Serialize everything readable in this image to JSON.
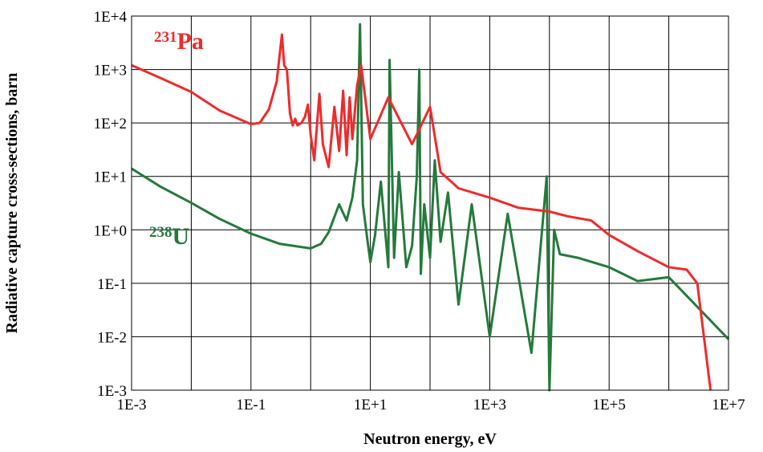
{
  "chart_data": {
    "type": "line",
    "title": "",
    "xlabel": "Neutron energy, eV",
    "ylabel": "Radiative capture cross-sections, barn",
    "x_scale": "log",
    "y_scale": "log",
    "xlim": [
      0.001,
      10000000
    ],
    "ylim": [
      0.001,
      10000
    ],
    "x_ticks": [
      "1E-3",
      "1E-1",
      "1E+1",
      "1E+3",
      "1E+5",
      "1E+7"
    ],
    "x_tick_values": [
      0.001,
      0.1,
      10,
      1000,
      100000,
      10000000
    ],
    "y_ticks": [
      "1E+4",
      "1E+3",
      "1E+2",
      "1E+1",
      "1E+0",
      "1E-1",
      "1E-2",
      "1E-3"
    ],
    "y_tick_values": [
      10000,
      1000,
      100,
      10,
      1,
      0.1,
      0.01,
      0.001
    ],
    "x_minor_gridlines": [
      0.01,
      1,
      100,
      10000,
      1000000
    ],
    "grid": true,
    "series": [
      {
        "name": "Pa",
        "mass_number": "231",
        "color": "#ee2b2b",
        "x": [
          0.001,
          0.003,
          0.01,
          0.03,
          0.1,
          0.14,
          0.2,
          0.27,
          0.33,
          0.36,
          0.4,
          0.45,
          0.5,
          0.55,
          0.6,
          0.7,
          0.8,
          0.9,
          1.0,
          1.15,
          1.4,
          1.6,
          2.0,
          2.5,
          3.0,
          3.5,
          4.0,
          4.5,
          5.0,
          6.0,
          7.0,
          10,
          20,
          50,
          100,
          150,
          300,
          1000,
          3000,
          10000,
          20000,
          50000,
          100000,
          300000,
          1000000,
          2000000,
          3000000,
          5000000
        ],
        "y": [
          1200,
          700,
          380,
          170,
          95,
          100,
          180,
          600,
          4500,
          1200,
          1000,
          150,
          90,
          120,
          90,
          100,
          130,
          220,
          60,
          20,
          350,
          40,
          15,
          200,
          30,
          400,
          25,
          300,
          50,
          500,
          1200,
          50,
          300,
          40,
          200,
          12,
          6,
          4,
          2.6,
          2.2,
          1.8,
          1.5,
          0.8,
          0.4,
          0.2,
          0.18,
          0.1,
          0.001
        ]
      },
      {
        "name": "U",
        "mass_number": "238",
        "color": "#247a3b",
        "x": [
          0.001,
          0.003,
          0.01,
          0.03,
          0.1,
          0.3,
          1,
          1.5,
          2,
          3,
          4,
          5,
          6,
          6.7,
          7.5,
          9,
          10,
          12,
          15,
          20,
          21,
          25,
          30,
          40,
          50,
          60,
          66,
          70,
          80,
          100,
          120,
          150,
          200,
          300,
          500,
          1000,
          2000,
          5000,
          9000,
          10000,
          12000,
          15000,
          30000,
          100000,
          300000,
          1000000,
          10000000
        ],
        "y": [
          14,
          6.5,
          3.2,
          1.6,
          0.85,
          0.55,
          0.45,
          0.55,
          0.9,
          3,
          1.5,
          4,
          20,
          7000,
          3,
          0.6,
          0.25,
          0.8,
          8,
          0.2,
          1500,
          0.3,
          12,
          0.2,
          0.5,
          10,
          1000,
          0.15,
          3,
          0.3,
          20,
          0.6,
          5,
          0.04,
          3,
          0.01,
          2,
          0.005,
          10,
          0.001,
          1,
          0.35,
          0.3,
          0.2,
          0.11,
          0.13,
          0.009
        ]
      }
    ]
  }
}
